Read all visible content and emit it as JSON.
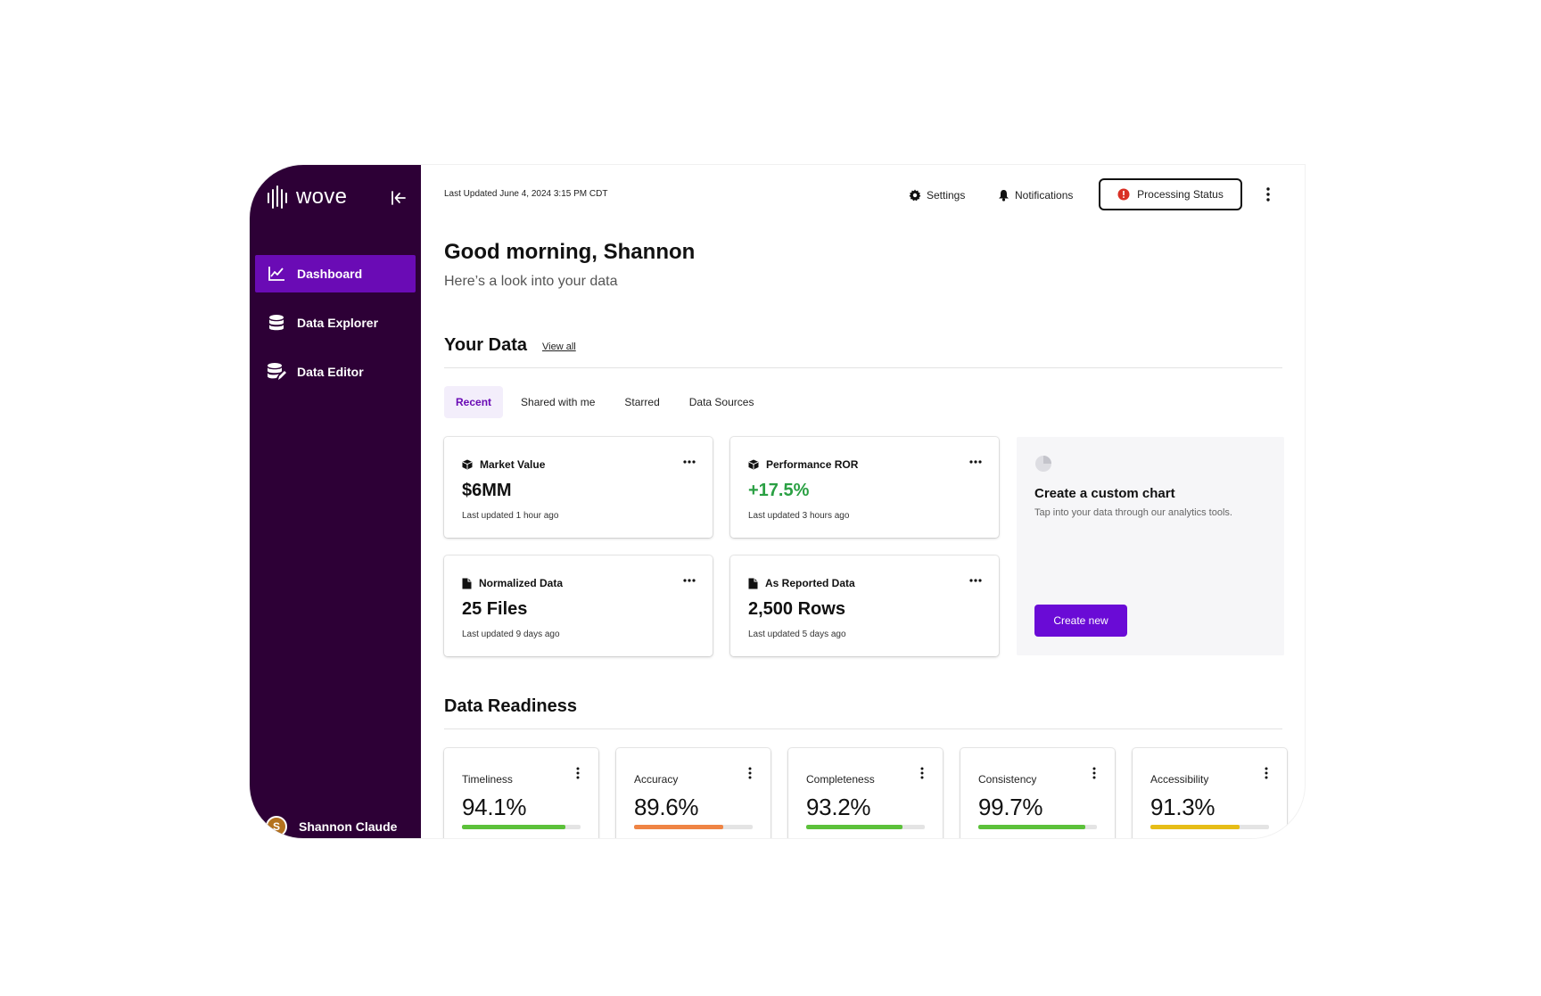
{
  "app": {
    "logo_text": "wove",
    "last_updated": "Last Updated June 4, 2024 3:15 PM CDT"
  },
  "sidebar": {
    "items": [
      {
        "label": "Dashboard",
        "icon": "line-chart-icon",
        "active": true
      },
      {
        "label": "Data Explorer",
        "icon": "database-icon",
        "active": false
      },
      {
        "label": "Data Editor",
        "icon": "database-edit-icon",
        "active": false
      }
    ],
    "user": {
      "initial": "S",
      "name": "Shannon Claude"
    }
  },
  "topbar": {
    "settings_label": "Settings",
    "notifications_label": "Notifications",
    "processing_label": "Processing Status"
  },
  "header": {
    "greeting": "Good morning, Shannon",
    "subtitle": "Here’s a look into your data"
  },
  "your_data": {
    "title": "Your Data",
    "view_all": "View all",
    "tabs": [
      {
        "label": "Recent",
        "active": true
      },
      {
        "label": "Shared with me",
        "active": false
      },
      {
        "label": "Starred",
        "active": false
      },
      {
        "label": "Data Sources",
        "active": false
      }
    ],
    "cards": [
      {
        "title": "Market Value",
        "value": "$6MM",
        "updated": "Last updated 1 hour ago",
        "icon": "cube-icon"
      },
      {
        "title": "Performance ROR",
        "value": "+17.5%",
        "updated": "Last updated 3 hours ago",
        "icon": "cube-icon"
      },
      {
        "title": "Normalized Data",
        "value": "25 Files",
        "updated": "Last updated 9 days ago",
        "icon": "file-icon"
      },
      {
        "title": "As Reported Data",
        "value": "2,500 Rows",
        "updated": "Last updated 5 days ago",
        "icon": "file-icon"
      }
    ],
    "custom_chart": {
      "title": "Create a custom chart",
      "subtitle": "Tap into your data through our analytics tools.",
      "button": "Create new"
    }
  },
  "readiness": {
    "title": "Data Readiness",
    "metrics": [
      {
        "label": "Timeliness",
        "value": "94.1%",
        "fill": 0.875,
        "color": "#5cc13a"
      },
      {
        "label": "Accuracy",
        "value": "89.6%",
        "fill": 0.75,
        "color": "#ef8444"
      },
      {
        "label": "Completeness",
        "value": "93.2%",
        "fill": 0.81,
        "color": "#5cc13a"
      },
      {
        "label": "Consistency",
        "value": "99.7%",
        "fill": 0.9,
        "color": "#5cc13a"
      },
      {
        "label": "Accessibility",
        "value": "91.3%",
        "fill": 0.75,
        "color": "#e6bd17"
      }
    ]
  },
  "colors": {
    "sidebar_bg": "#2d0036",
    "accent": "#6a0bd6",
    "positive": "#2aa043",
    "alert": "#d93025"
  }
}
